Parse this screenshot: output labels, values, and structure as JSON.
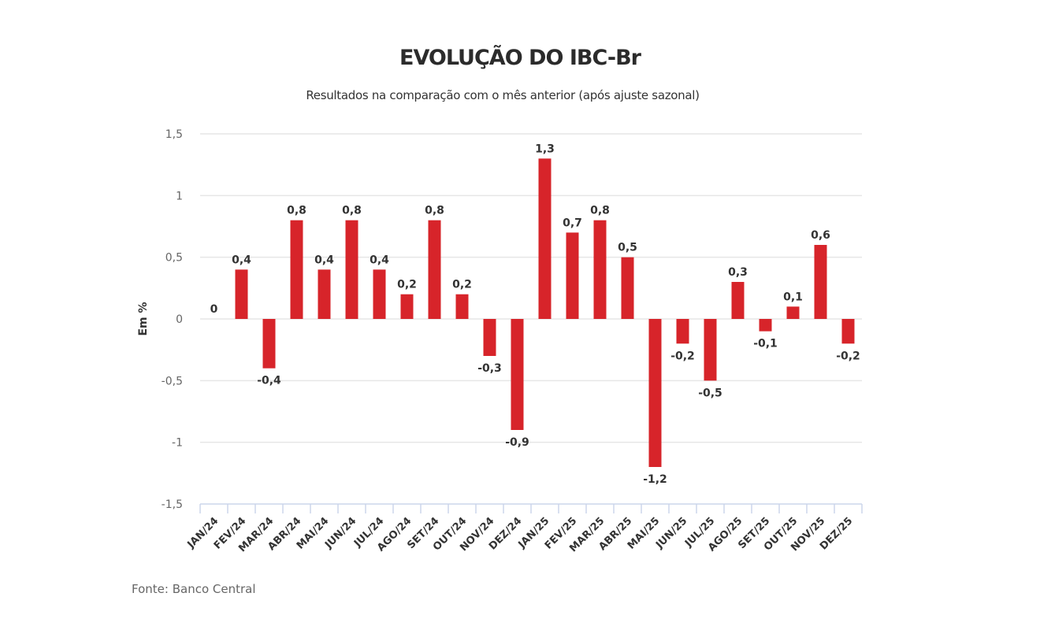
{
  "chart_data": {
    "type": "bar",
    "title": "EVOLUÇÃO DO IBC-Br",
    "subtitle": "Resultados na comparação com o mês anterior (após ajuste sazonal)",
    "xlabel": "",
    "ylabel": "Em %",
    "ylim": [
      -1.5,
      1.5
    ],
    "yticks": [
      1.5,
      1,
      0.5,
      0,
      -0.5,
      -1,
      -1.5
    ],
    "ytick_labels": [
      "1,5",
      "1",
      "0,5",
      "0",
      "-0,5",
      "-1",
      "-1,5"
    ],
    "grid": true,
    "bar_color": "#d7242a",
    "categories": [
      "JAN/24",
      "FEV/24",
      "MAR/24",
      "ABR/24",
      "MAI/24",
      "JUN/24",
      "JUL/24",
      "AGO/24",
      "SET/24",
      "OUT/24",
      "NOV/24",
      "DEZ/24",
      "JAN/25",
      "FEV/25",
      "MAR/25",
      "ABR/25",
      "MAI/25",
      "JUN/25",
      "JUL/25",
      "AGO/25",
      "SET/25",
      "OUT/25",
      "NOV/25",
      "DEZ/25"
    ],
    "values": [
      0,
      0.4,
      -0.4,
      0.8,
      0.4,
      0.8,
      0.4,
      0.2,
      0.8,
      0.2,
      -0.3,
      -0.9,
      1.3,
      0.7,
      0.8,
      0.5,
      -1.2,
      -0.2,
      -0.5,
      0.3,
      -0.1,
      0.1,
      0.6,
      -0.2
    ],
    "data_labels": [
      "0",
      "0,4",
      "-0,4",
      "0,8",
      "0,4",
      "0,8",
      "0,4",
      "0,2",
      "0,8",
      "0,2",
      "-0,3",
      "-0,9",
      "1,3",
      "0,7",
      "0,8",
      "0,5",
      "-1,2",
      "-0,2",
      "-0,5",
      "0,3",
      "-0,1",
      "0,1",
      "0,6",
      "-0,2"
    ],
    "source": "Fonte: Banco Central"
  }
}
